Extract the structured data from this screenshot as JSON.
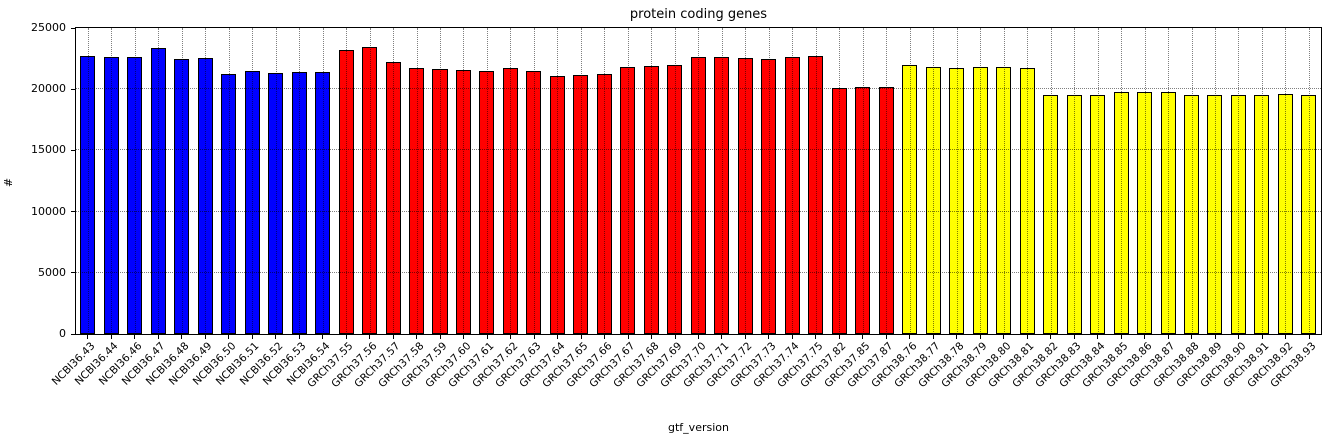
{
  "chart_data": {
    "type": "bar",
    "title": "protein coding genes",
    "xlabel": "gtf_version",
    "ylabel": "#",
    "ylim": [
      0,
      25000
    ],
    "yticks": [
      0,
      5000,
      10000,
      15000,
      20000,
      25000
    ],
    "grid": "dotted black, vertical line at every bar and horizontal line at every y tick, drawn above bars",
    "legend": "none",
    "bar_edge_color": "#000000",
    "color_groups": [
      {
        "prefix": "NCBI36",
        "color": "#0000ff"
      },
      {
        "prefix": "GRCh37",
        "color": "#ff0000"
      },
      {
        "prefix": "GRCh38",
        "color": "#ffff00"
      }
    ],
    "categories": [
      "NCBI36.43",
      "NCBI36.44",
      "NCBI36.46",
      "NCBI36.47",
      "NCBI36.48",
      "NCBI36.49",
      "NCBI36.50",
      "NCBI36.51",
      "NCBI36.52",
      "NCBI36.53",
      "NCBI36.54",
      "GRCh37.55",
      "GRCh37.56",
      "GRCh37.57",
      "GRCh37.58",
      "GRCh37.59",
      "GRCh37.60",
      "GRCh37.61",
      "GRCh37.62",
      "GRCh37.63",
      "GRCh37.64",
      "GRCh37.65",
      "GRCh37.66",
      "GRCh37.67",
      "GRCh37.68",
      "GRCh37.69",
      "GRCh37.70",
      "GRCh37.71",
      "GRCh37.72",
      "GRCh37.73",
      "GRCh37.74",
      "GRCh37.75",
      "GRCh37.82",
      "GRCh37.85",
      "GRCh37.87",
      "GRCh38.76",
      "GRCh38.77",
      "GRCh38.78",
      "GRCh38.79",
      "GRCh38.80",
      "GRCh38.81",
      "GRCh38.82",
      "GRCh38.83",
      "GRCh38.84",
      "GRCh38.85",
      "GRCh38.86",
      "GRCh38.87",
      "GRCh38.88",
      "GRCh38.89",
      "GRCh38.90",
      "GRCh38.91",
      "GRCh38.92",
      "GRCh38.93"
    ],
    "values": [
      22700,
      22650,
      22600,
      23400,
      22500,
      22550,
      21250,
      21450,
      21300,
      21400,
      21400,
      23200,
      23450,
      22250,
      21700,
      21650,
      21550,
      21450,
      21750,
      21450,
      21100,
      21150,
      21250,
      21850,
      21900,
      21950,
      22650,
      22600,
      22550,
      22500,
      22600,
      22750,
      20100,
      20150,
      20150,
      22000,
      21800,
      21750,
      21800,
      21850,
      21750,
      19550,
      19550,
      19550,
      19750,
      19800,
      19750,
      19550,
      19500,
      19550,
      19550,
      19600,
      19550
    ]
  }
}
